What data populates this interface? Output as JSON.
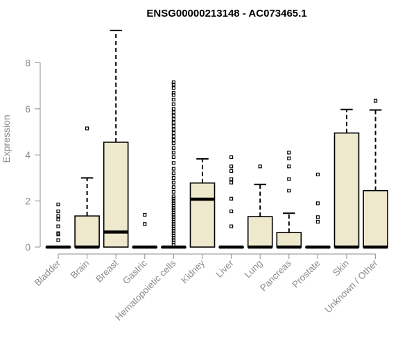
{
  "chart_data": {
    "type": "boxplot",
    "title": "ENSG00000213148 - AC073465.1",
    "xlabel": "",
    "ylabel": "Expression",
    "ylim": [
      0,
      9.5
    ],
    "yticks": [
      "0",
      "2",
      "4",
      "6",
      "8"
    ],
    "grid": false,
    "box_color": "#EEE8CD",
    "categories": [
      "Bladder",
      "Brain",
      "Breast",
      "Gastric",
      "Hematopoietic cells",
      "Kidney",
      "Liver",
      "Lung",
      "Pancreas",
      "Prostate",
      "Skin",
      "Unknown / Other"
    ],
    "boxes": [
      {
        "min": 0,
        "q1": 0,
        "median": 0,
        "q3": 0,
        "max": 0,
        "outliers": [
          0.3,
          0.55,
          0.6,
          0.9,
          1.2,
          1.35,
          1.55,
          1.85
        ]
      },
      {
        "min": 0,
        "q1": 0,
        "median": 0,
        "q3": 1.35,
        "max": 3.0,
        "outliers": [
          5.15
        ]
      },
      {
        "min": 0,
        "q1": 0,
        "median": 0.65,
        "q3": 4.55,
        "max": 9.4,
        "outliers": []
      },
      {
        "min": 0,
        "q1": 0,
        "median": 0,
        "q3": 0,
        "max": 0,
        "outliers": [
          1.0,
          1.4
        ]
      },
      {
        "min": 0,
        "q1": 0,
        "median": 0,
        "q3": 0,
        "max": 0,
        "outliers": [
          0.1,
          0.2,
          0.3,
          0.4,
          0.5,
          0.6,
          0.7,
          0.8,
          0.9,
          1.0,
          1.1,
          1.2,
          1.3,
          1.4,
          1.5,
          1.6,
          1.7,
          1.8,
          1.9,
          2.0,
          2.1,
          2.2,
          2.4,
          2.6,
          2.8,
          3.0,
          3.2,
          3.4,
          3.65,
          3.9,
          4.1,
          4.3,
          4.5,
          4.65,
          4.8,
          4.95,
          5.1,
          5.25,
          5.4,
          5.55,
          5.7,
          5.85,
          6.0,
          6.2,
          6.4,
          6.6,
          6.7,
          6.9,
          7.05,
          7.15
        ]
      },
      {
        "min": 0,
        "q1": 0,
        "median": 2.08,
        "q3": 2.78,
        "max": 3.83,
        "outliers": []
      },
      {
        "min": 0,
        "q1": 0,
        "median": 0,
        "q3": 0,
        "max": 0,
        "outliers": [
          0.9,
          1.55,
          2.1,
          2.8,
          2.95,
          3.3,
          3.5,
          3.9
        ]
      },
      {
        "min": 0,
        "q1": 0,
        "median": 0,
        "q3": 1.32,
        "max": 2.72,
        "outliers": [
          3.5
        ]
      },
      {
        "min": 0,
        "q1": 0,
        "median": 0,
        "q3": 0.63,
        "max": 1.47,
        "outliers": [
          2.45,
          2.95,
          3.5,
          3.85,
          4.1
        ]
      },
      {
        "min": 0,
        "q1": 0,
        "median": 0,
        "q3": 0,
        "max": 0,
        "outliers": [
          1.1,
          1.3,
          1.9,
          3.15
        ]
      },
      {
        "min": 0,
        "q1": 0,
        "median": 0,
        "q3": 4.95,
        "max": 5.97,
        "outliers": []
      },
      {
        "min": 0,
        "q1": 0,
        "median": 0,
        "q3": 2.45,
        "max": 5.95,
        "outliers": [
          6.35
        ]
      }
    ]
  }
}
